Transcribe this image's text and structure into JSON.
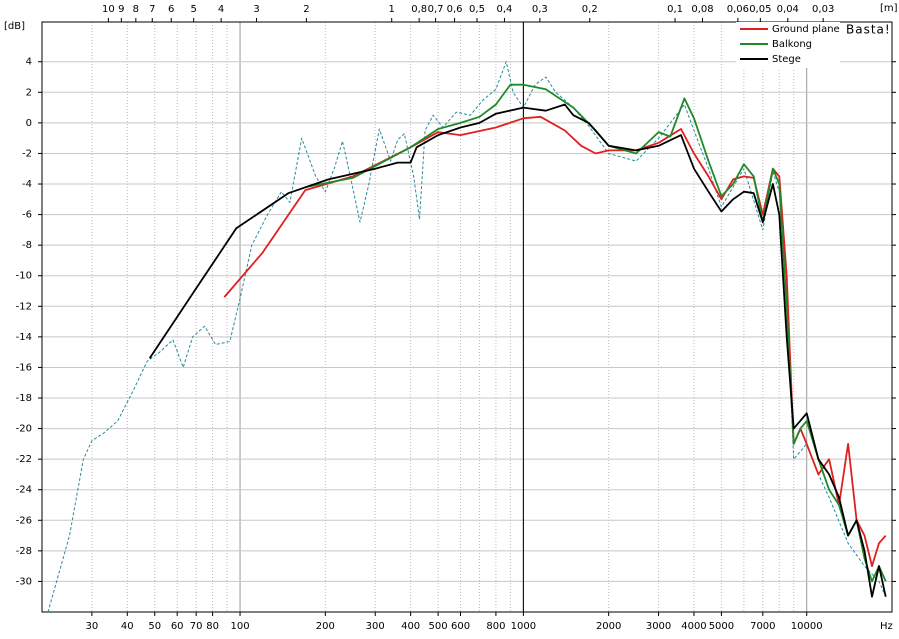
{
  "chart_data": {
    "type": "line",
    "y_unit_label": "[dB]",
    "x_unit_label": "Hz",
    "top_unit_label": "[m]",
    "watermark": "Basta!",
    "log_x": true,
    "grid": true,
    "xlim": [
      20,
      20000
    ],
    "ylim": [
      -32,
      6.6
    ],
    "xticks": [
      30,
      40,
      50,
      60,
      70,
      80,
      100,
      200,
      300,
      400,
      500,
      600,
      800,
      1000,
      2000,
      3000,
      4000,
      5000,
      7000,
      10000
    ],
    "yticks": [
      -30,
      -28,
      -26,
      -24,
      -22,
      -20,
      -18,
      -16,
      -14,
      -12,
      -10,
      -8,
      -6,
      -4,
      -2,
      0,
      2,
      4
    ],
    "top_ticks": [
      10,
      9,
      8,
      7,
      6,
      5,
      4,
      3,
      2,
      1,
      {
        "value": 0.8,
        "label": "0,8"
      },
      {
        "value": 0.7,
        "label": "0,7"
      },
      {
        "value": 0.6,
        "label": "0,6"
      },
      {
        "value": 0.5,
        "label": "0,5"
      },
      {
        "value": 0.4,
        "label": "0,4"
      },
      {
        "value": 0.3,
        "label": "0,3"
      },
      {
        "value": 0.2,
        "label": "0,2"
      },
      {
        "value": 0.1,
        "label": "0,1"
      },
      {
        "value": 0.08,
        "label": "0,08"
      },
      {
        "value": 0.06,
        "label": "0,06"
      },
      {
        "value": 0.05,
        "label": "0,05"
      },
      {
        "value": 0.04,
        "label": "0,04"
      },
      {
        "value": 0.03,
        "label": "0,03"
      }
    ],
    "cursor_x": 1000,
    "legend": "upper right",
    "series": [
      {
        "color": "#2a8a9a",
        "dash": true,
        "x": [
          21,
          25,
          28,
          30,
          33,
          37,
          42,
          47,
          52,
          58,
          63,
          68,
          75,
          82,
          92,
          100,
          110,
          125,
          140,
          150,
          165,
          185,
          200,
          215,
          230,
          245,
          265,
          285,
          310,
          340,
          360,
          380,
          410,
          430,
          450,
          480,
          520,
          580,
          650,
          720,
          800,
          870,
          920,
          1000,
          1100,
          1200,
          1300,
          1500,
          1700,
          2000,
          2500,
          3000,
          3700,
          4000,
          4500,
          5000,
          6000,
          7000,
          7600,
          8000,
          8500,
          9000,
          10000,
          11000,
          12000,
          14000,
          16000,
          18000,
          19000
        ],
        "values": [
          -32,
          -27,
          -22,
          -20.8,
          -20.3,
          -19.5,
          -17.5,
          -15.6,
          -15,
          -14.2,
          -16,
          -14,
          -13.3,
          -14.5,
          -14.3,
          -11.5,
          -8,
          -6,
          -4.5,
          -5.2,
          -1,
          -3.5,
          -4.5,
          -3,
          -1.2,
          -3.5,
          -6.5,
          -4,
          -0.4,
          -2.5,
          -1.1,
          -0.7,
          -3.5,
          -6.3,
          -0.5,
          0.5,
          -0.3,
          0.7,
          0.5,
          1.5,
          2.2,
          4,
          2,
          1,
          2.5,
          3,
          2,
          1,
          -0.2,
          -2,
          -2.5,
          -1,
          1.2,
          -0.5,
          -3,
          -5.5,
          -3,
          -7,
          -3.2,
          -4.5,
          -12,
          -22,
          -21,
          -23,
          -24.5,
          -27.5,
          -29,
          -30,
          -31
        ]
      },
      {
        "name": "Ground plane",
        "color": "#e02020",
        "x": [
          88,
          120,
          170,
          250,
          400,
          500,
          600,
          800,
          1000,
          1150,
          1400,
          1600,
          1800,
          2000,
          2500,
          3000,
          3600,
          4000,
          4500,
          5000,
          5500,
          6000,
          6500,
          7000,
          7600,
          8000,
          8500,
          9000,
          9500,
          10000,
          11000,
          12000,
          13000,
          14000,
          15000,
          16000,
          17000,
          18000,
          19000
        ],
        "values": [
          -11.4,
          -8.5,
          -4.4,
          -3.5,
          -1.6,
          -0.6,
          -0.8,
          -0.3,
          0.3,
          0.4,
          -0.5,
          -1.5,
          -2,
          -1.8,
          -1.8,
          -1.3,
          -0.4,
          -2,
          -3.5,
          -5,
          -3.7,
          -3.5,
          -3.6,
          -6,
          -3,
          -3.5,
          -10,
          -21,
          -20,
          -21,
          -23,
          -22,
          -25,
          -21,
          -26,
          -27,
          -29,
          -27.5,
          -27
        ]
      },
      {
        "name": "Balkong",
        "color": "#1e8a2a",
        "x": [
          170,
          250,
          400,
          500,
          600,
          700,
          800,
          900,
          1000,
          1200,
          1500,
          1800,
          2000,
          2500,
          3000,
          3300,
          3700,
          4000,
          4500,
          5000,
          5500,
          6000,
          6500,
          7000,
          7600,
          8000,
          8500,
          9000,
          9500,
          10000,
          11000,
          12000,
          13000,
          14000,
          15000,
          16000,
          17000,
          18000,
          19000
        ],
        "values": [
          -4.2,
          -3.6,
          -1.6,
          -0.4,
          0,
          0.4,
          1.2,
          2.5,
          2.5,
          2.2,
          1,
          -0.5,
          -1.5,
          -2,
          -0.6,
          -0.9,
          1.6,
          0.3,
          -2.5,
          -4.8,
          -4,
          -2.7,
          -3.5,
          -6.5,
          -3,
          -4,
          -12,
          -21,
          -20,
          -19.5,
          -22,
          -24,
          -25,
          -27,
          -26,
          -28.5,
          -30,
          -29,
          -30
        ]
      },
      {
        "name": "Stege",
        "color": "#000000",
        "x": [
          48,
          69,
          97,
          148,
          205,
          300,
          360,
          400,
          420,
          500,
          600,
          700,
          800,
          1000,
          1200,
          1400,
          1500,
          1700,
          2000,
          2500,
          3000,
          3600,
          4000,
          4500,
          5000,
          5500,
          6000,
          6500,
          7000,
          7600,
          8000,
          8500,
          9000,
          10000,
          11000,
          12000,
          13000,
          14000,
          15000,
          16000,
          17000,
          18000,
          19000
        ],
        "values": [
          -15.4,
          -11,
          -6.9,
          -4.6,
          -3.7,
          -3,
          -2.6,
          -2.6,
          -1.6,
          -0.8,
          -0.3,
          0,
          0.6,
          1,
          0.8,
          1.2,
          0.5,
          0,
          -1.5,
          -1.8,
          -1.5,
          -0.8,
          -3,
          -4.5,
          -5.8,
          -5,
          -4.5,
          -4.6,
          -6.5,
          -4,
          -6,
          -14,
          -20,
          -19,
          -22,
          -23,
          -24.5,
          -27,
          -26,
          -28,
          -31,
          -29,
          -31
        ]
      }
    ]
  }
}
